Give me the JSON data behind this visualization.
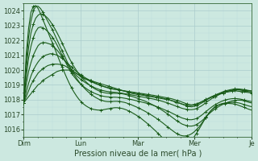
{
  "xlabel": "Pression niveau de la mer( hPa )",
  "ylim": [
    1015.5,
    1024.5
  ],
  "xlim": [
    0,
    96
  ],
  "yticks": [
    1016,
    1017,
    1018,
    1019,
    1020,
    1021,
    1022,
    1023,
    1024
  ],
  "xtick_positions": [
    0,
    24,
    48,
    72,
    96
  ],
  "xtick_labels": [
    "Dim",
    "Lun",
    "Mar",
    "Mer",
    "Je"
  ],
  "bg_color": "#cce8e0",
  "grid_major_color": "#aacccc",
  "grid_minor_color": "#bbdddd",
  "line_color": "#1a5c1a",
  "series": [
    [
      1017.8,
      1018.0,
      1018.2,
      1018.4,
      1018.6,
      1018.8,
      1019.0,
      1019.1,
      1019.3,
      1019.4,
      1019.5,
      1019.6,
      1019.7,
      1019.8,
      1019.9,
      1019.95,
      1020.0,
      1020.0,
      1020.0,
      1020.0,
      1019.95,
      1019.9,
      1019.8,
      1019.7,
      1019.6,
      1019.5,
      1019.4,
      1019.35,
      1019.3,
      1019.25,
      1019.2,
      1019.15,
      1019.1,
      1019.05,
      1019.0,
      1018.95,
      1018.9,
      1018.85,
      1018.8,
      1018.75,
      1018.7,
      1018.65,
      1018.6,
      1018.55,
      1018.5,
      1018.45,
      1018.4,
      1018.38,
      1018.35,
      1018.33,
      1018.3,
      1018.28,
      1018.25,
      1018.22,
      1018.2,
      1018.17,
      1018.14,
      1018.11,
      1018.08,
      1018.05,
      1018.02,
      1018.0,
      1017.95,
      1017.9,
      1017.85,
      1017.8,
      1017.75,
      1017.7,
      1017.65,
      1017.62,
      1017.6,
      1017.62,
      1017.65,
      1017.7,
      1017.78,
      1017.85,
      1017.92,
      1018.0,
      1018.08,
      1018.15,
      1018.22,
      1018.3,
      1018.35,
      1018.4,
      1018.45,
      1018.5,
      1018.52,
      1018.55,
      1018.57,
      1018.6,
      1018.58,
      1018.56,
      1018.54,
      1018.52,
      1018.5,
      1018.48,
      1018.45
    ],
    [
      1017.8,
      1018.2,
      1018.6,
      1019.0,
      1019.3,
      1019.55,
      1019.8,
      1019.95,
      1020.1,
      1020.2,
      1020.3,
      1020.35,
      1020.4,
      1020.4,
      1020.4,
      1020.38,
      1020.35,
      1020.3,
      1020.2,
      1020.1,
      1020.0,
      1019.88,
      1019.75,
      1019.65,
      1019.55,
      1019.45,
      1019.38,
      1019.3,
      1019.22,
      1019.15,
      1019.08,
      1019.02,
      1018.95,
      1018.9,
      1018.85,
      1018.8,
      1018.75,
      1018.72,
      1018.7,
      1018.67,
      1018.65,
      1018.62,
      1018.6,
      1018.57,
      1018.55,
      1018.52,
      1018.5,
      1018.47,
      1018.44,
      1018.42,
      1018.4,
      1018.37,
      1018.35,
      1018.32,
      1018.3,
      1018.27,
      1018.24,
      1018.21,
      1018.18,
      1018.15,
      1018.12,
      1018.09,
      1018.05,
      1018.0,
      1017.95,
      1017.9,
      1017.84,
      1017.78,
      1017.72,
      1017.68,
      1017.65,
      1017.68,
      1017.72,
      1017.78,
      1017.85,
      1017.93,
      1018.02,
      1018.1,
      1018.18,
      1018.25,
      1018.32,
      1018.38,
      1018.44,
      1018.5,
      1018.55,
      1018.58,
      1018.62,
      1018.65,
      1018.68,
      1018.68,
      1018.68,
      1018.66,
      1018.64,
      1018.62,
      1018.6,
      1018.58
    ],
    [
      1017.8,
      1018.5,
      1019.1,
      1019.6,
      1020.0,
      1020.3,
      1020.55,
      1020.75,
      1020.9,
      1021.0,
      1021.05,
      1021.1,
      1021.1,
      1021.05,
      1021.0,
      1020.9,
      1020.8,
      1020.65,
      1020.5,
      1020.35,
      1020.2,
      1020.05,
      1019.9,
      1019.78,
      1019.65,
      1019.55,
      1019.45,
      1019.36,
      1019.28,
      1019.2,
      1019.12,
      1019.05,
      1018.98,
      1018.92,
      1018.87,
      1018.82,
      1018.78,
      1018.74,
      1018.7,
      1018.67,
      1018.64,
      1018.61,
      1018.58,
      1018.55,
      1018.52,
      1018.49,
      1018.46,
      1018.43,
      1018.4,
      1018.37,
      1018.34,
      1018.31,
      1018.28,
      1018.25,
      1018.22,
      1018.19,
      1018.16,
      1018.13,
      1018.1,
      1018.06,
      1018.02,
      1017.98,
      1017.93,
      1017.88,
      1017.82,
      1017.76,
      1017.7,
      1017.64,
      1017.58,
      1017.54,
      1017.52,
      1017.55,
      1017.6,
      1017.67,
      1017.76,
      1017.85,
      1017.96,
      1018.06,
      1018.16,
      1018.24,
      1018.32,
      1018.39,
      1018.46,
      1018.53,
      1018.6,
      1018.63,
      1018.67,
      1018.7,
      1018.73,
      1018.73,
      1018.72,
      1018.7,
      1018.68,
      1018.65,
      1018.62,
      1018.6
    ],
    [
      1017.8,
      1019.0,
      1019.9,
      1020.5,
      1021.0,
      1021.35,
      1021.65,
      1021.8,
      1021.85,
      1021.85,
      1021.8,
      1021.75,
      1021.65,
      1021.5,
      1021.32,
      1021.12,
      1020.9,
      1020.68,
      1020.45,
      1020.22,
      1020.0,
      1019.8,
      1019.62,
      1019.48,
      1019.35,
      1019.23,
      1019.12,
      1019.02,
      1018.93,
      1018.85,
      1018.78,
      1018.72,
      1018.66,
      1018.62,
      1018.58,
      1018.55,
      1018.53,
      1018.51,
      1018.5,
      1018.48,
      1018.46,
      1018.44,
      1018.41,
      1018.38,
      1018.35,
      1018.32,
      1018.29,
      1018.26,
      1018.23,
      1018.2,
      1018.17,
      1018.14,
      1018.11,
      1018.08,
      1018.05,
      1018.01,
      1017.97,
      1017.93,
      1017.88,
      1017.83,
      1017.78,
      1017.72,
      1017.66,
      1017.6,
      1017.54,
      1017.48,
      1017.42,
      1017.38,
      1017.35,
      1017.33,
      1017.33,
      1017.35,
      1017.4,
      1017.48,
      1017.57,
      1017.68,
      1017.8,
      1017.92,
      1018.03,
      1018.13,
      1018.22,
      1018.3,
      1018.38,
      1018.45,
      1018.52,
      1018.56,
      1018.6,
      1018.63,
      1018.66,
      1018.66,
      1018.65,
      1018.63,
      1018.6,
      1018.57,
      1018.54,
      1018.52
    ],
    [
      1017.8,
      1019.5,
      1020.8,
      1021.6,
      1022.2,
      1022.6,
      1022.85,
      1022.9,
      1022.85,
      1022.75,
      1022.6,
      1022.42,
      1022.2,
      1021.95,
      1021.65,
      1021.33,
      1021.0,
      1020.67,
      1020.35,
      1020.05,
      1019.78,
      1019.55,
      1019.35,
      1019.17,
      1019.02,
      1018.88,
      1018.76,
      1018.65,
      1018.56,
      1018.47,
      1018.4,
      1018.34,
      1018.28,
      1018.24,
      1018.21,
      1018.19,
      1018.18,
      1018.17,
      1018.17,
      1018.16,
      1018.15,
      1018.13,
      1018.1,
      1018.07,
      1018.04,
      1018.01,
      1017.97,
      1017.93,
      1017.89,
      1017.85,
      1017.81,
      1017.77,
      1017.72,
      1017.67,
      1017.62,
      1017.56,
      1017.5,
      1017.44,
      1017.37,
      1017.3,
      1017.23,
      1017.16,
      1017.08,
      1017.0,
      1016.92,
      1016.84,
      1016.77,
      1016.72,
      1016.68,
      1016.65,
      1016.65,
      1016.68,
      1016.73,
      1016.82,
      1016.93,
      1017.06,
      1017.2,
      1017.33,
      1017.46,
      1017.58,
      1017.68,
      1017.77,
      1017.85,
      1017.92,
      1017.98,
      1018.02,
      1018.05,
      1018.07,
      1018.08,
      1018.07,
      1018.05,
      1018.02,
      1017.98,
      1017.94,
      1017.9,
      1017.87
    ],
    [
      1017.8,
      1020.0,
      1021.5,
      1022.5,
      1023.1,
      1023.5,
      1023.7,
      1023.8,
      1023.75,
      1023.65,
      1023.5,
      1023.3,
      1023.05,
      1022.78,
      1022.48,
      1022.16,
      1021.82,
      1021.48,
      1021.13,
      1020.8,
      1020.5,
      1020.22,
      1019.97,
      1019.75,
      1019.55,
      1019.37,
      1019.2,
      1019.05,
      1018.92,
      1018.8,
      1018.7,
      1018.62,
      1018.55,
      1018.5,
      1018.46,
      1018.44,
      1018.43,
      1018.43,
      1018.43,
      1018.43,
      1018.42,
      1018.4,
      1018.37,
      1018.33,
      1018.28,
      1018.23,
      1018.18,
      1018.12,
      1018.06,
      1018.0,
      1017.94,
      1017.87,
      1017.8,
      1017.72,
      1017.64,
      1017.55,
      1017.46,
      1017.36,
      1017.26,
      1017.15,
      1017.04,
      1016.92,
      1016.8,
      1016.68,
      1016.56,
      1016.46,
      1016.36,
      1016.3,
      1016.25,
      1016.22,
      1016.22,
      1016.25,
      1016.32,
      1016.42,
      1016.54,
      1016.68,
      1016.84,
      1017.0,
      1017.15,
      1017.28,
      1017.4,
      1017.5,
      1017.6,
      1017.68,
      1017.76,
      1017.82,
      1017.87,
      1017.92,
      1017.95,
      1017.97,
      1017.97,
      1017.96,
      1017.92,
      1017.87,
      1017.82,
      1017.78
    ],
    [
      1017.8,
      1020.5,
      1022.2,
      1023.3,
      1024.0,
      1024.3,
      1024.3,
      1024.15,
      1023.9,
      1023.6,
      1023.3,
      1023.0,
      1022.7,
      1022.35,
      1022.0,
      1021.65,
      1021.3,
      1020.95,
      1020.6,
      1020.28,
      1019.98,
      1019.7,
      1019.45,
      1019.22,
      1019.02,
      1018.83,
      1018.66,
      1018.51,
      1018.37,
      1018.25,
      1018.15,
      1018.06,
      1017.98,
      1017.93,
      1017.89,
      1017.87,
      1017.87,
      1017.88,
      1017.89,
      1017.89,
      1017.88,
      1017.85,
      1017.82,
      1017.77,
      1017.71,
      1017.65,
      1017.58,
      1017.51,
      1017.43,
      1017.35,
      1017.27,
      1017.18,
      1017.09,
      1016.99,
      1016.89,
      1016.78,
      1016.67,
      1016.55,
      1016.43,
      1016.3,
      1016.17,
      1016.04,
      1015.92,
      1015.8,
      1015.7,
      1015.62,
      1015.57,
      1015.55,
      1015.57,
      1015.62,
      1015.7,
      1015.82,
      1015.97,
      1016.15,
      1016.36,
      1016.58,
      1016.82,
      1017.05,
      1017.24,
      1017.4,
      1017.53,
      1017.63,
      1017.7,
      1017.75,
      1017.78,
      1017.8,
      1017.81,
      1017.82,
      1017.82,
      1017.8,
      1017.77,
      1017.72,
      1017.67,
      1017.62,
      1017.57,
      1017.53
    ],
    [
      1017.8,
      1021.0,
      1022.8,
      1023.9,
      1024.3,
      1024.35,
      1024.15,
      1023.8,
      1023.4,
      1023.0,
      1022.6,
      1022.2,
      1021.82,
      1021.42,
      1021.0,
      1020.6,
      1020.2,
      1019.82,
      1019.45,
      1019.1,
      1018.78,
      1018.5,
      1018.25,
      1018.03,
      1017.85,
      1017.7,
      1017.58,
      1017.48,
      1017.41,
      1017.35,
      1017.32,
      1017.3,
      1017.3,
      1017.32,
      1017.35,
      1017.38,
      1017.41,
      1017.44,
      1017.46,
      1017.46,
      1017.44,
      1017.41,
      1017.36,
      1017.3,
      1017.22,
      1017.14,
      1017.05,
      1016.95,
      1016.84,
      1016.73,
      1016.6,
      1016.47,
      1016.33,
      1016.19,
      1016.04,
      1015.89,
      1015.73,
      1015.57,
      1015.41,
      1015.26,
      1015.12,
      1015.0,
      1014.9,
      1014.82,
      1014.77,
      1014.76,
      1014.78,
      1014.85,
      1014.95,
      1015.1,
      1015.27,
      1015.48,
      1015.72,
      1015.98,
      1016.26,
      1016.54,
      1016.82,
      1017.06,
      1017.26,
      1017.42,
      1017.54,
      1017.62,
      1017.68,
      1017.72,
      1017.74,
      1017.75,
      1017.74,
      1017.73,
      1017.7,
      1017.66,
      1017.6,
      1017.54,
      1017.48,
      1017.41,
      1017.35,
      1017.3
    ]
  ]
}
